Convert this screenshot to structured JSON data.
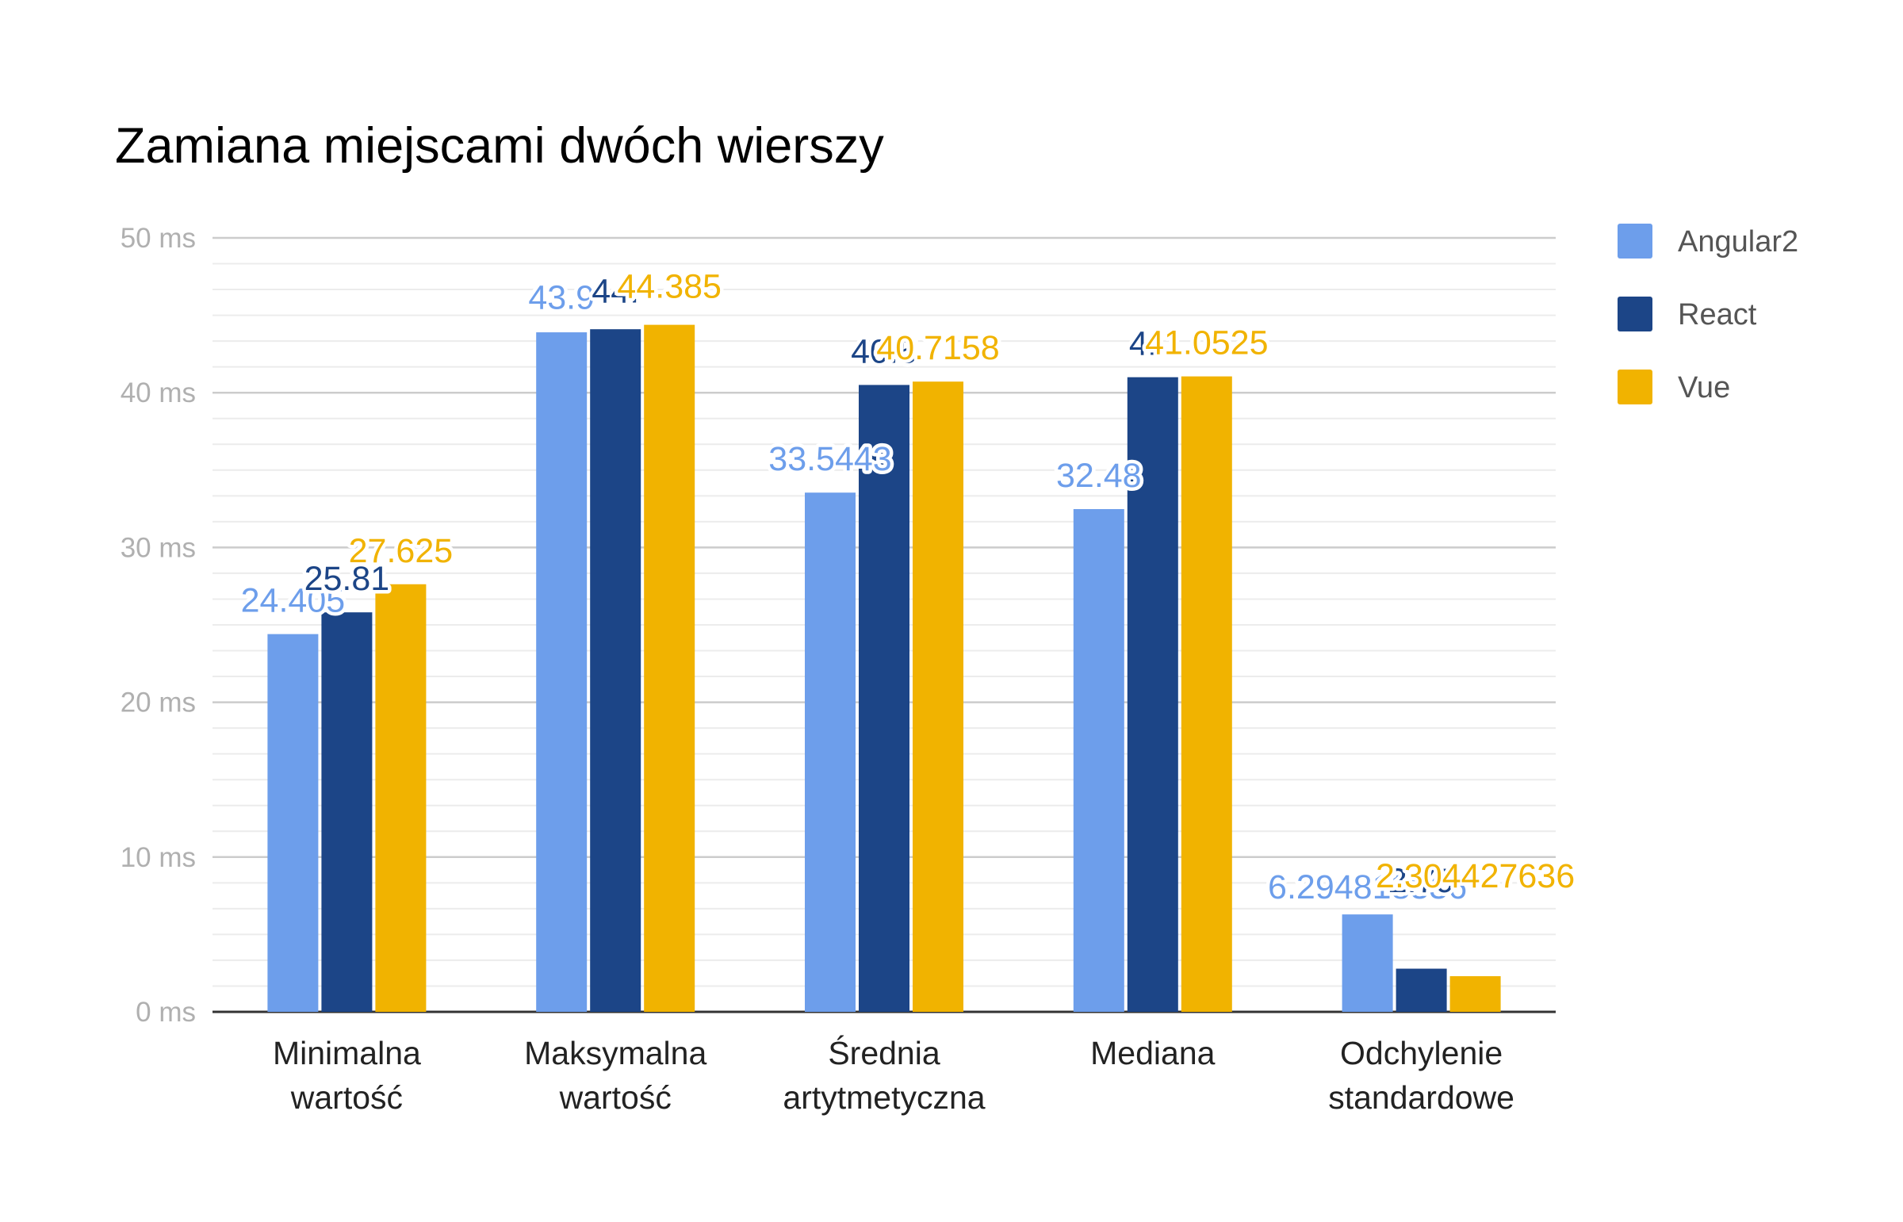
{
  "chart_data": {
    "type": "bar",
    "title": "Zamiana miejscami dwóch wierszy",
    "categories": [
      [
        "Minimalna",
        "wartość"
      ],
      [
        "Maksymalna",
        "wartość"
      ],
      [
        "Średnia",
        "artytmetyczna"
      ],
      [
        "Mediana"
      ],
      [
        "Odchylenie",
        "standardowe"
      ]
    ],
    "y_ticks": [
      "0 ms",
      "10 ms",
      "20 ms",
      "30 ms",
      "40 ms",
      "50 ms"
    ],
    "ylim": [
      0,
      50
    ],
    "major_step": 10,
    "minor_step": 1.6667,
    "grid": true,
    "legend_position": "right",
    "series": [
      {
        "name": "Angular2",
        "color": "#6d9eeb",
        "values": [
          24.405,
          43.9,
          33.5443,
          32.48,
          6.294818336
        ],
        "labels": [
          "24.405",
          "43.9",
          "33.5443",
          "32.48",
          "6.294818336"
        ]
      },
      {
        "name": "React",
        "color": "#1c4587",
        "values": [
          25.81,
          44.1,
          40.5,
          41.0,
          2.79
        ],
        "labels": [
          "25.81",
          "44.",
          "40.5",
          "41.",
          "2.79"
        ]
      },
      {
        "name": "Vue",
        "color": "#f1b300",
        "values": [
          27.625,
          44.385,
          40.7158,
          41.0525,
          2.304427636
        ],
        "labels": [
          "27.625",
          "44.385",
          "40.7158",
          "41.0525",
          "2.304427636"
        ]
      }
    ]
  }
}
